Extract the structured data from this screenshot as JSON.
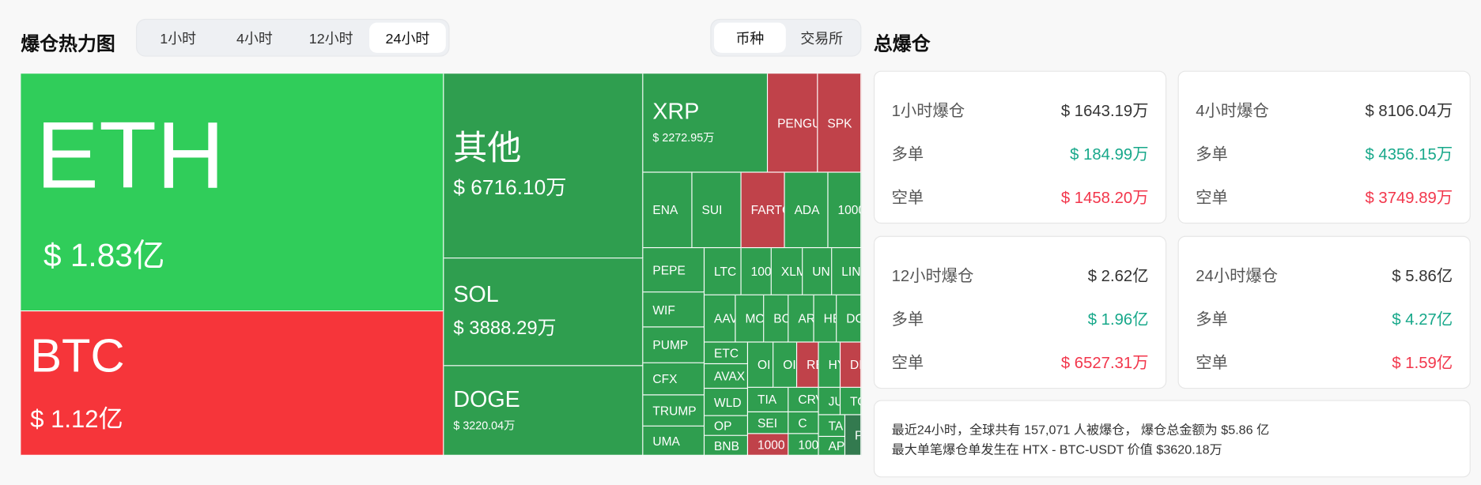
{
  "heatmap": {
    "title": "爆仓热力图",
    "time_tabs": [
      "1小时",
      "4小时",
      "12小时",
      "24小时"
    ],
    "active_time_tab": "24小时",
    "group_tabs": [
      "币种",
      "交易所"
    ],
    "active_group_tab": "币种",
    "colors": {
      "green": "#30cd5a",
      "red": "#f6353a",
      "mid-green": "#2f9e4f",
      "muted-red": "#c0424a",
      "dark-green": "#337a4f"
    },
    "cells": [
      {
        "name": "ETH",
        "value": "$ 1.83亿",
        "color": "green"
      },
      {
        "name": "BTC",
        "value": "$ 1.12亿",
        "color": "red"
      },
      {
        "name": "其他",
        "value": "$ 6716.10万",
        "color": "mid-green"
      },
      {
        "name": "SOL",
        "value": "$ 3888.29万",
        "color": "mid-green"
      },
      {
        "name": "DOGE",
        "value": "$ 3220.04万",
        "color": "mid-green"
      },
      {
        "name": "XRP",
        "value": "$ 2272.95万",
        "color": "mid-green"
      },
      {
        "name": "PENGU",
        "color": "muted-red"
      },
      {
        "name": "SPK",
        "color": "muted-red"
      },
      {
        "name": "ENA",
        "color": "mid-green"
      },
      {
        "name": "SUI",
        "color": "mid-green"
      },
      {
        "name": "FARTC",
        "color": "muted-red"
      },
      {
        "name": "ADA",
        "color": "mid-green"
      },
      {
        "name": "1000",
        "color": "mid-green"
      },
      {
        "name": "PEPE",
        "color": "mid-green"
      },
      {
        "name": "WIF",
        "color": "mid-green"
      },
      {
        "name": "PUMP",
        "color": "mid-green"
      },
      {
        "name": "CFX",
        "color": "mid-green"
      },
      {
        "name": "TRUMP",
        "color": "mid-green"
      },
      {
        "name": "UMA",
        "color": "mid-green"
      },
      {
        "name": "LTC",
        "color": "mid-green"
      },
      {
        "name": "100",
        "color": "mid-green"
      },
      {
        "name": "XLM",
        "color": "mid-green"
      },
      {
        "name": "UN",
        "color": "mid-green"
      },
      {
        "name": "LIN",
        "color": "mid-green"
      },
      {
        "name": "AAV",
        "color": "mid-green"
      },
      {
        "name": "MC",
        "color": "mid-green"
      },
      {
        "name": "BC",
        "color": "mid-green"
      },
      {
        "name": "AR",
        "color": "mid-green"
      },
      {
        "name": "HE",
        "color": "mid-green"
      },
      {
        "name": "DC",
        "color": "mid-green"
      },
      {
        "name": "ETC",
        "color": "mid-green"
      },
      {
        "name": "AVAX",
        "color": "mid-green"
      },
      {
        "name": "WLD",
        "color": "mid-green"
      },
      {
        "name": "OP",
        "color": "mid-green"
      },
      {
        "name": "BNB",
        "color": "mid-green"
      },
      {
        "name": "OI",
        "color": "mid-green"
      },
      {
        "name": "OI",
        "color": "mid-green"
      },
      {
        "name": "RE",
        "color": "muted-red"
      },
      {
        "name": "HY",
        "color": "mid-green"
      },
      {
        "name": "DI",
        "color": "muted-red"
      },
      {
        "name": "TIA",
        "color": "mid-green"
      },
      {
        "name": "CRV",
        "color": "mid-green"
      },
      {
        "name": "SEI",
        "color": "mid-green"
      },
      {
        "name": "C",
        "color": "mid-green"
      },
      {
        "name": "1000",
        "color": "muted-red"
      },
      {
        "name": "100",
        "color": "mid-green"
      },
      {
        "name": "JU",
        "color": "mid-green"
      },
      {
        "name": "TO",
        "color": "mid-green"
      },
      {
        "name": "TA",
        "color": "mid-green"
      },
      {
        "name": "APT",
        "color": "mid-green"
      },
      {
        "name": "P",
        "color": "dark-green"
      }
    ]
  },
  "summary": {
    "title": "总爆仓",
    "cards": [
      {
        "label": "1小时爆仓",
        "total": "$ 1643.19万",
        "long_label": "多单",
        "long": "$ 184.99万",
        "short_label": "空单",
        "short": "$ 1458.20万"
      },
      {
        "label": "4小时爆仓",
        "total": "$ 8106.04万",
        "long_label": "多单",
        "long": "$ 4356.15万",
        "short_label": "空单",
        "short": "$ 3749.89万"
      },
      {
        "label": "12小时爆仓",
        "total": "$ 2.62亿",
        "long_label": "多单",
        "long": "$ 1.96亿",
        "short_label": "空单",
        "short": "$ 6527.31万"
      },
      {
        "label": "24小时爆仓",
        "total": "$ 5.86亿",
        "long_label": "多单",
        "long": "$ 4.27亿",
        "short_label": "空单",
        "short": "$ 1.59亿"
      }
    ],
    "note_line1": "最近24小时，全球共有 157,071 人被爆仓， 爆仓总金额为 $5.86 亿",
    "note_line2": "最大单笔爆仓单发生在 HTX - BTC-USDT 价值 $3620.18万"
  }
}
